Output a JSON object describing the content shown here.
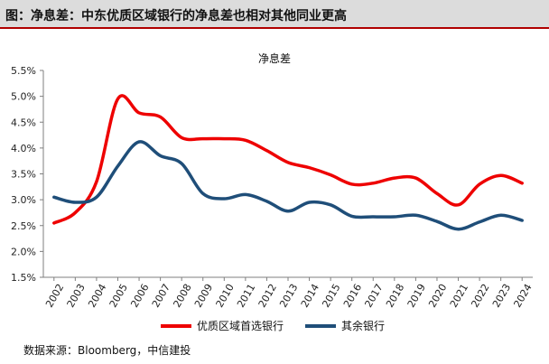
{
  "figure": {
    "title": "图：净息差：中东优质区域银行的净息差也相对其他同业更高",
    "source": "数据来源：Bloomberg，中信建投"
  },
  "colors": {
    "header_bg": "#dcdcdc",
    "accent": "#b00000",
    "series_1": "#ee0000",
    "series_2": "#1f4e79"
  },
  "chart_data": {
    "type": "line",
    "title": "净息差",
    "xlabel": "",
    "ylabel": "",
    "x": [
      "2002",
      "2003",
      "2004",
      "2005",
      "2006",
      "2007",
      "2008",
      "2009",
      "2010",
      "2011",
      "2012",
      "2013",
      "2014",
      "2015",
      "2016",
      "2017",
      "2018",
      "2019",
      "2020",
      "2021",
      "2022",
      "2023",
      "2024"
    ],
    "y_ticks": [
      "1.5%",
      "2.0%",
      "2.5%",
      "3.0%",
      "3.5%",
      "4.0%",
      "4.5%",
      "5.0%",
      "5.5%"
    ],
    "ylim": [
      1.5,
      5.5
    ],
    "grid": false,
    "legend_position": "bottom",
    "series": [
      {
        "name": "优质区域首选银行",
        "color": "#ee0000",
        "values": [
          2.55,
          2.75,
          3.35,
          4.95,
          4.68,
          4.6,
          4.2,
          4.18,
          4.18,
          4.15,
          3.95,
          3.72,
          3.62,
          3.48,
          3.3,
          3.32,
          3.42,
          3.42,
          3.12,
          2.9,
          3.3,
          3.47,
          3.32
        ]
      },
      {
        "name": "其余银行",
        "color": "#1f4e79",
        "values": [
          3.05,
          2.95,
          3.05,
          3.65,
          4.12,
          3.85,
          3.7,
          3.12,
          3.02,
          3.1,
          2.97,
          2.78,
          2.95,
          2.9,
          2.68,
          2.67,
          2.67,
          2.7,
          2.58,
          2.43,
          2.57,
          2.7,
          2.6
        ]
      }
    ]
  }
}
